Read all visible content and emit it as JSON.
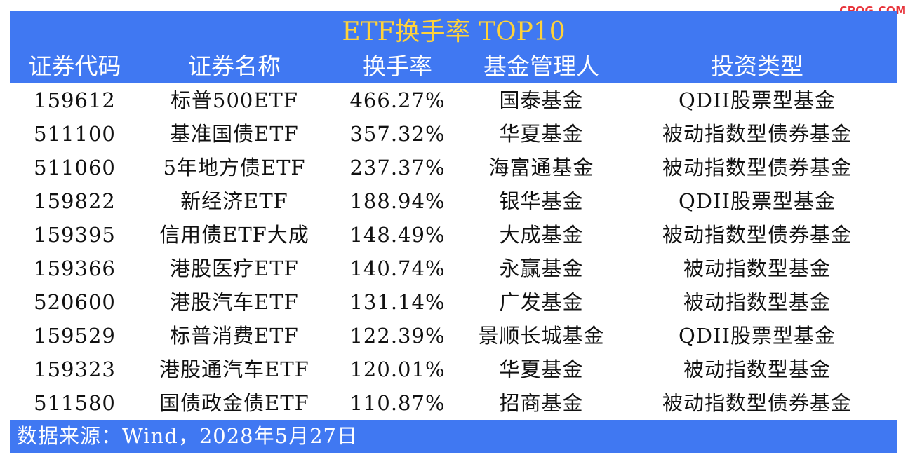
{
  "watermark": "CPQG.COM",
  "chart_data": {
    "type": "table",
    "title": "ETF换手率 TOP10",
    "columns": [
      "证券代码",
      "证券名称",
      "换手率",
      "基金管理人",
      "投资类型"
    ],
    "rows": [
      [
        "159612",
        "标普500ETF",
        "466.27%",
        "国泰基金",
        "QDII股票型基金"
      ],
      [
        "511100",
        "基准国债ETF",
        "357.32%",
        "华夏基金",
        "被动指数型债券基金"
      ],
      [
        "511060",
        "5年地方债ETF",
        "237.37%",
        "海富通基金",
        "被动指数型债券基金"
      ],
      [
        "159822",
        "新经济ETF",
        "188.94%",
        "银华基金",
        "QDII股票型基金"
      ],
      [
        "159395",
        "信用债ETF大成",
        "148.49%",
        "大成基金",
        "被动指数型债券基金"
      ],
      [
        "159366",
        "港股医疗ETF",
        "140.74%",
        "永赢基金",
        "被动指数型基金"
      ],
      [
        "520600",
        "港股汽车ETF",
        "131.14%",
        "广发基金",
        "被动指数型基金"
      ],
      [
        "159529",
        "标普消费ETF",
        "122.39%",
        "景顺长城基金",
        "QDII股票型基金"
      ],
      [
        "159323",
        "港股通汽车ETF",
        "120.01%",
        "华夏基金",
        "被动指数型基金"
      ],
      [
        "511580",
        "国债政金债ETF",
        "110.87%",
        "招商基金",
        "被动指数型债券基金"
      ]
    ],
    "source": "数据来源：Wind，2028年5月27日"
  },
  "colors": {
    "header_bg": "#4078f2",
    "title_text": "#ffd23a",
    "header_text": "#ffffff",
    "body_text": "#111111",
    "watermark_text": "#e8343b"
  }
}
